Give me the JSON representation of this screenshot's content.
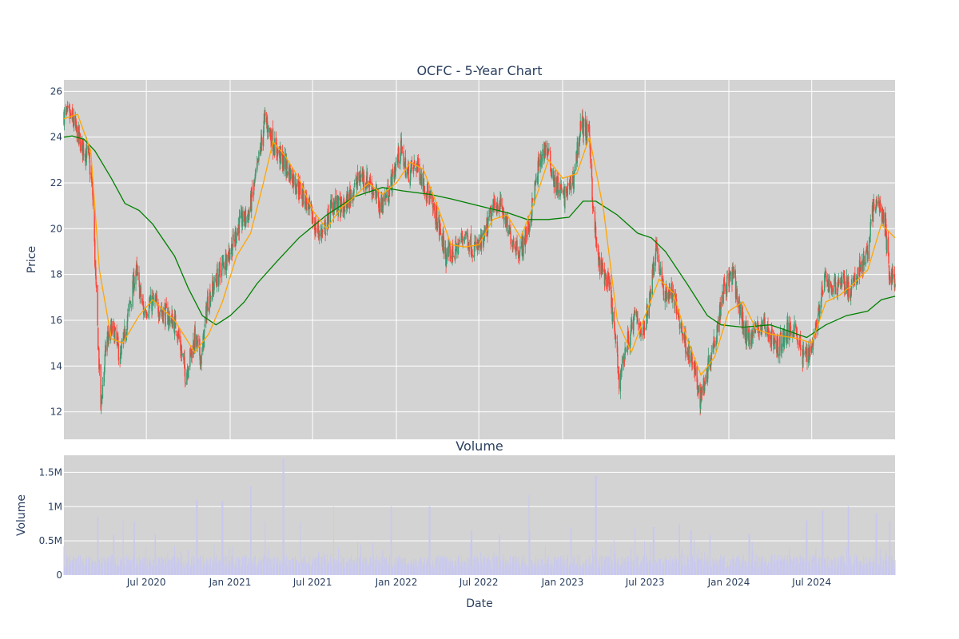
{
  "chart_data": [
    {
      "type": "candlestick",
      "title": "OCFC - 5-Year Chart",
      "ylabel": "Price",
      "ylim": [
        10.8,
        26.5
      ],
      "x_range": [
        "2020-01-02",
        "2024-12-31"
      ],
      "y_ticks": [
        "12",
        "14",
        "16",
        "18",
        "20",
        "22",
        "24",
        "26"
      ],
      "y_tick_values": [
        12,
        14,
        16,
        18,
        20,
        22,
        24,
        26
      ],
      "plot_background": "#d3d3d3",
      "grid": true,
      "colors": {
        "up": "#3d9970",
        "down": "#ff4136",
        "ma_short": "#ffa500",
        "ma_long": "#008000"
      },
      "price_path": [
        [
          "2020-01-02",
          25.0
        ],
        [
          "2020-01-20",
          24.8
        ],
        [
          "2020-02-10",
          23.6
        ],
        [
          "2020-02-25",
          23.2
        ],
        [
          "2020-03-05",
          21.5
        ],
        [
          "2020-03-12",
          17.5
        ],
        [
          "2020-03-23",
          12.2
        ],
        [
          "2020-04-05",
          15.2
        ],
        [
          "2020-04-20",
          15.6
        ],
        [
          "2020-05-05",
          14.3
        ],
        [
          "2020-05-20",
          16.0
        ],
        [
          "2020-06-08",
          18.2
        ],
        [
          "2020-06-25",
          16.4
        ],
        [
          "2020-07-15",
          16.8
        ],
        [
          "2020-08-10",
          16.3
        ],
        [
          "2020-09-05",
          15.8
        ],
        [
          "2020-09-25",
          13.6
        ],
        [
          "2020-10-15",
          15.2
        ],
        [
          "2020-10-30",
          14.3
        ],
        [
          "2020-11-12",
          16.8
        ],
        [
          "2020-12-10",
          18.2
        ],
        [
          "2021-01-05",
          19.2
        ],
        [
          "2021-01-20",
          20.2
        ],
        [
          "2021-02-10",
          20.6
        ],
        [
          "2021-03-01",
          22.5
        ],
        [
          "2021-03-18",
          24.8
        ],
        [
          "2021-04-08",
          23.6
        ],
        [
          "2021-05-01",
          22.8
        ],
        [
          "2021-05-25",
          22.0
        ],
        [
          "2021-06-15",
          21.3
        ],
        [
          "2021-07-08",
          20.0
        ],
        [
          "2021-07-25",
          19.8
        ],
        [
          "2021-08-15",
          21.2
        ],
        [
          "2021-09-05",
          20.8
        ],
        [
          "2021-09-25",
          21.6
        ],
        [
          "2021-10-15",
          22.3
        ],
        [
          "2021-11-05",
          22.0
        ],
        [
          "2021-11-25",
          21.0
        ],
        [
          "2021-12-15",
          21.6
        ],
        [
          "2022-01-10",
          23.5
        ],
        [
          "2022-01-25",
          22.4
        ],
        [
          "2022-02-15",
          22.8
        ],
        [
          "2022-03-10",
          21.6
        ],
        [
          "2022-03-30",
          20.5
        ],
        [
          "2022-04-20",
          18.8
        ],
        [
          "2022-05-10",
          19.0
        ],
        [
          "2022-05-30",
          19.8
        ],
        [
          "2022-06-20",
          19.1
        ],
        [
          "2022-07-10",
          19.4
        ],
        [
          "2022-07-30",
          20.8
        ],
        [
          "2022-08-15",
          21.2
        ],
        [
          "2022-09-05",
          19.8
        ],
        [
          "2022-09-30",
          19.0
        ],
        [
          "2022-10-20",
          20.2
        ],
        [
          "2022-11-10",
          22.8
        ],
        [
          "2022-11-25",
          23.6
        ],
        [
          "2022-12-15",
          22.0
        ],
        [
          "2023-01-05",
          21.4
        ],
        [
          "2023-01-25",
          22.2
        ],
        [
          "2023-02-10",
          24.6
        ],
        [
          "2023-03-01",
          24.0
        ],
        [
          "2023-03-10",
          20.5
        ],
        [
          "2023-03-20",
          18.6
        ],
        [
          "2023-04-15",
          17.4
        ],
        [
          "2023-05-05",
          13.4
        ],
        [
          "2023-05-20",
          14.8
        ],
        [
          "2023-06-10",
          16.2
        ],
        [
          "2023-06-28",
          15.4
        ],
        [
          "2023-07-15",
          17.6
        ],
        [
          "2023-07-25",
          19.4
        ],
        [
          "2023-08-10",
          17.2
        ],
        [
          "2023-08-30",
          17.2
        ],
        [
          "2023-09-25",
          15.2
        ],
        [
          "2023-10-15",
          14.0
        ],
        [
          "2023-10-30",
          12.6
        ],
        [
          "2023-11-12",
          13.6
        ],
        [
          "2023-12-05",
          15.6
        ],
        [
          "2023-12-20",
          17.4
        ],
        [
          "2024-01-10",
          18.0
        ],
        [
          "2024-01-25",
          16.4
        ],
        [
          "2024-02-10",
          15.2
        ],
        [
          "2024-03-01",
          15.6
        ],
        [
          "2024-03-20",
          15.8
        ],
        [
          "2024-04-15",
          14.8
        ],
        [
          "2024-05-05",
          15.4
        ],
        [
          "2024-05-25",
          15.8
        ],
        [
          "2024-06-10",
          14.4
        ],
        [
          "2024-06-30",
          14.8
        ],
        [
          "2024-07-15",
          16.2
        ],
        [
          "2024-07-30",
          17.8
        ],
        [
          "2024-08-15",
          17.4
        ],
        [
          "2024-09-05",
          17.8
        ],
        [
          "2024-09-25",
          17.2
        ],
        [
          "2024-10-15",
          18.4
        ],
        [
          "2024-11-01",
          18.8
        ],
        [
          "2024-11-08",
          20.6
        ],
        [
          "2024-11-25",
          21.2
        ],
        [
          "2024-12-10",
          20.0
        ],
        [
          "2024-12-18",
          18.0
        ],
        [
          "2024-12-31",
          17.8
        ]
      ],
      "ma_short_path": [
        [
          "2020-01-02",
          24.8
        ],
        [
          "2020-02-01",
          25.0
        ],
        [
          "2020-03-01",
          23.4
        ],
        [
          "2020-03-20",
          18.2
        ],
        [
          "2020-04-15",
          15.2
        ],
        [
          "2020-05-10",
          15.0
        ],
        [
          "2020-06-15",
          16.2
        ],
        [
          "2020-07-15",
          16.9
        ],
        [
          "2020-09-01",
          16.0
        ],
        [
          "2020-10-15",
          14.6
        ],
        [
          "2020-11-15",
          15.4
        ],
        [
          "2020-12-15",
          16.8
        ],
        [
          "2021-01-15",
          18.8
        ],
        [
          "2021-02-15",
          19.8
        ],
        [
          "2021-03-15",
          22.0
        ],
        [
          "2021-04-05",
          23.8
        ],
        [
          "2021-05-01",
          23.2
        ],
        [
          "2021-06-01",
          22.2
        ],
        [
          "2021-07-01",
          20.8
        ],
        [
          "2021-08-01",
          20.0
        ],
        [
          "2021-09-01",
          20.9
        ],
        [
          "2021-10-01",
          21.4
        ],
        [
          "2021-11-01",
          22.0
        ],
        [
          "2021-12-01",
          21.5
        ],
        [
          "2022-01-01",
          22.0
        ],
        [
          "2022-02-01",
          22.9
        ],
        [
          "2022-03-01",
          22.6
        ],
        [
          "2022-04-01",
          21.0
        ],
        [
          "2022-05-01",
          19.3
        ],
        [
          "2022-06-01",
          19.2
        ],
        [
          "2022-07-01",
          19.3
        ],
        [
          "2022-08-01",
          20.4
        ],
        [
          "2022-09-01",
          20.6
        ],
        [
          "2022-10-01",
          19.6
        ],
        [
          "2022-11-01",
          21.2
        ],
        [
          "2022-12-01",
          23.0
        ],
        [
          "2023-01-01",
          22.2
        ],
        [
          "2023-02-01",
          22.4
        ],
        [
          "2023-03-01",
          24.0
        ],
        [
          "2023-04-01",
          20.8
        ],
        [
          "2023-05-01",
          16.0
        ],
        [
          "2023-06-01",
          14.6
        ],
        [
          "2023-07-01",
          16.2
        ],
        [
          "2023-08-01",
          17.8
        ],
        [
          "2023-09-01",
          17.2
        ],
        [
          "2023-10-01",
          15.2
        ],
        [
          "2023-11-01",
          13.6
        ],
        [
          "2023-12-01",
          14.4
        ],
        [
          "2024-01-01",
          16.4
        ],
        [
          "2024-02-01",
          16.8
        ],
        [
          "2024-03-01",
          15.6
        ],
        [
          "2024-04-01",
          15.4
        ],
        [
          "2024-05-01",
          15.3
        ],
        [
          "2024-06-01",
          15.2
        ],
        [
          "2024-07-01",
          15.0
        ],
        [
          "2024-08-01",
          16.8
        ],
        [
          "2024-09-01",
          17.1
        ],
        [
          "2024-10-01",
          17.6
        ],
        [
          "2024-11-01",
          18.2
        ],
        [
          "2024-12-01",
          20.2
        ],
        [
          "2024-12-31",
          19.6
        ]
      ],
      "ma_long_path": [
        [
          "2020-01-02",
          24.0
        ],
        [
          "2020-01-20",
          24.05
        ],
        [
          "2020-02-15",
          23.9
        ],
        [
          "2020-03-10",
          23.4
        ],
        [
          "2020-04-15",
          22.2
        ],
        [
          "2020-05-15",
          21.1
        ],
        [
          "2020-06-15",
          20.8
        ],
        [
          "2020-07-15",
          20.2
        ],
        [
          "2020-09-01",
          18.8
        ],
        [
          "2020-10-01",
          17.4
        ],
        [
          "2020-11-01",
          16.2
        ],
        [
          "2020-12-01",
          15.8
        ],
        [
          "2021-01-01",
          16.2
        ],
        [
          "2021-02-01",
          16.8
        ],
        [
          "2021-03-01",
          17.6
        ],
        [
          "2021-04-15",
          18.6
        ],
        [
          "2021-06-01",
          19.6
        ],
        [
          "2021-08-01",
          20.6
        ],
        [
          "2021-10-01",
          21.4
        ],
        [
          "2021-12-01",
          21.8
        ],
        [
          "2022-01-15",
          21.65
        ],
        [
          "2022-03-15",
          21.5
        ],
        [
          "2022-05-01",
          21.3
        ],
        [
          "2022-07-01",
          21.0
        ],
        [
          "2022-09-01",
          20.7
        ],
        [
          "2022-10-15",
          20.4
        ],
        [
          "2022-12-01",
          20.4
        ],
        [
          "2023-01-15",
          20.5
        ],
        [
          "2023-02-15",
          21.2
        ],
        [
          "2023-03-15",
          21.2
        ],
        [
          "2023-05-01",
          20.6
        ],
        [
          "2023-06-15",
          19.8
        ],
        [
          "2023-07-15",
          19.6
        ],
        [
          "2023-08-15",
          19.0
        ],
        [
          "2023-10-01",
          17.6
        ],
        [
          "2023-11-15",
          16.2
        ],
        [
          "2023-12-15",
          15.8
        ],
        [
          "2024-02-01",
          15.7
        ],
        [
          "2024-04-01",
          15.8
        ],
        [
          "2024-05-15",
          15.5
        ],
        [
          "2024-06-20",
          15.25
        ],
        [
          "2024-08-01",
          15.8
        ],
        [
          "2024-09-15",
          16.2
        ],
        [
          "2024-11-01",
          16.4
        ],
        [
          "2024-12-01",
          16.9
        ],
        [
          "2024-12-31",
          17.05
        ]
      ]
    },
    {
      "type": "bar",
      "title": "Volume",
      "xlabel": "Date",
      "ylabel": "Volume",
      "ylim": [
        0,
        1750000
      ],
      "y_ticks": [
        "0",
        "0.5M",
        "1M",
        "1.5M"
      ],
      "y_tick_values": [
        0,
        500000,
        1000000,
        1500000
      ],
      "x_ticks": [
        "Jul 2020",
        "Jan 2021",
        "Jul 2021",
        "Jan 2022",
        "Jul 2022",
        "Jan 2023",
        "Jul 2023",
        "Jan 2024",
        "Jul 2024"
      ],
      "x_tick_dates": [
        "2020-07-01",
        "2021-01-01",
        "2021-07-01",
        "2022-01-01",
        "2022-07-01",
        "2023-01-01",
        "2023-07-01",
        "2024-01-01",
        "2024-07-01"
      ],
      "bar_color": "#c8c8f0",
      "plot_background": "#d3d3d3",
      "base_volume": 220000,
      "volume_spikes": [
        [
          "2020-03-16",
          850000
        ],
        [
          "2020-04-20",
          600000
        ],
        [
          "2020-05-10",
          800000
        ],
        [
          "2020-06-05",
          780000
        ],
        [
          "2020-07-20",
          600000
        ],
        [
          "2020-10-20",
          1100000
        ],
        [
          "2020-12-15",
          1080000
        ],
        [
          "2021-02-15",
          1300000
        ],
        [
          "2021-03-20",
          780000
        ],
        [
          "2021-04-28",
          1700000
        ],
        [
          "2021-06-05",
          780000
        ],
        [
          "2021-08-15",
          1000000
        ],
        [
          "2021-12-20",
          1000000
        ],
        [
          "2022-03-15",
          1000000
        ],
        [
          "2022-06-15",
          650000
        ],
        [
          "2022-08-15",
          600000
        ],
        [
          "2022-10-20",
          650000
        ],
        [
          "2023-01-20",
          700000
        ],
        [
          "2023-03-15",
          1450000
        ],
        [
          "2023-06-10",
          700000
        ],
        [
          "2023-07-20",
          700000
        ],
        [
          "2023-09-15",
          750000
        ],
        [
          "2023-10-10",
          650000
        ],
        [
          "2023-11-20",
          600000
        ],
        [
          "2024-02-15",
          600000
        ],
        [
          "2024-06-20",
          800000
        ],
        [
          "2024-07-25",
          950000
        ],
        [
          "2024-09-20",
          1000000
        ],
        [
          "2024-11-20",
          900000
        ],
        [
          "2024-12-20",
          780000
        ]
      ]
    }
  ]
}
